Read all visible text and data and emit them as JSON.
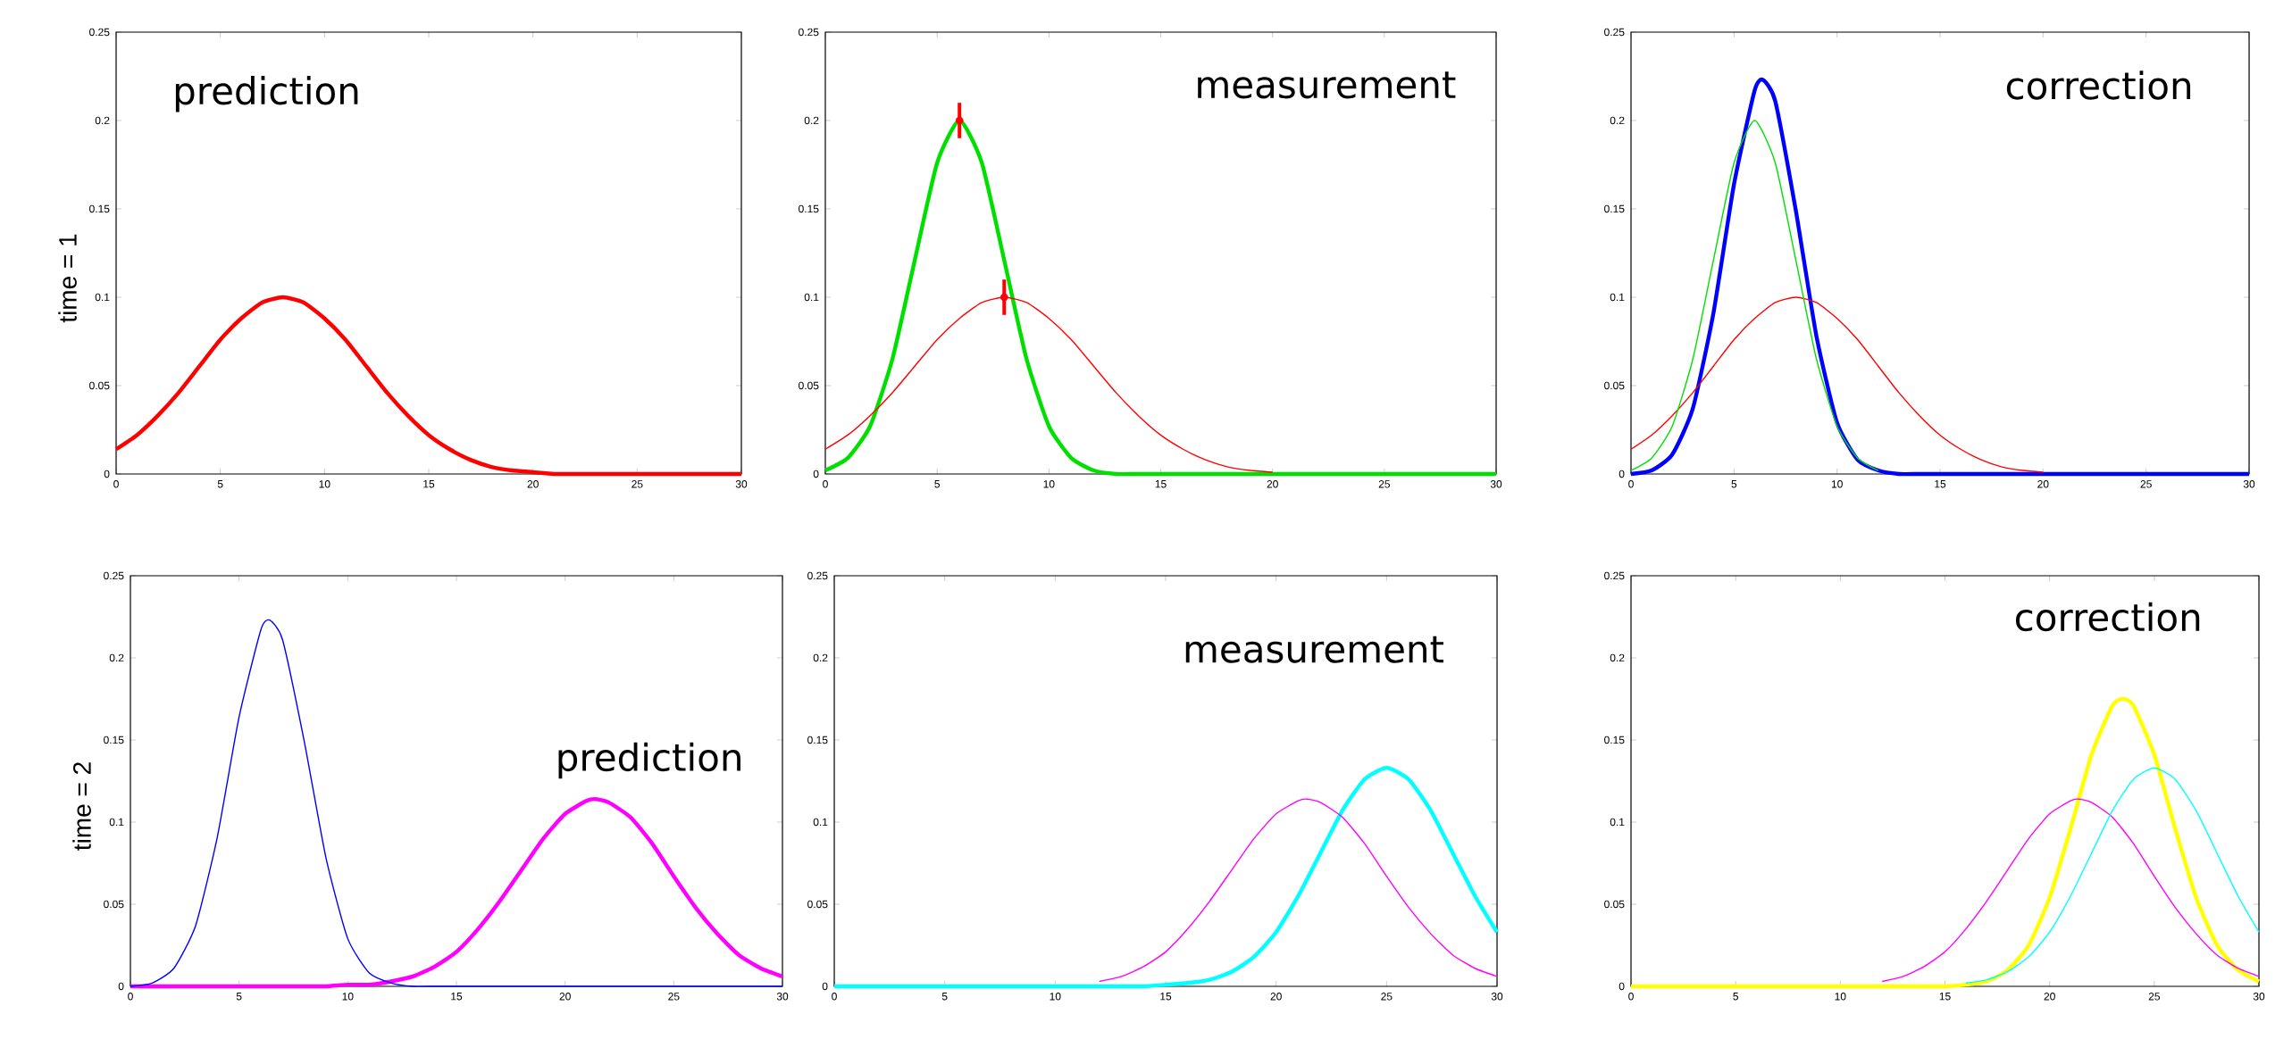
{
  "chart_data": [
    {
      "type": "line",
      "ylabel": "time = 1",
      "annotations": [
        "prediction"
      ],
      "xlim": [
        0,
        30
      ],
      "ylim": [
        0,
        0.25
      ],
      "xticks": [
        0,
        5,
        10,
        15,
        20,
        25,
        30
      ],
      "yticks": [
        0,
        0.05,
        0.1,
        0.15,
        0.2,
        0.25
      ],
      "series": [
        {
          "color": "#ff0000",
          "x": [
            0,
            1,
            2,
            3,
            4,
            5,
            6,
            7,
            8,
            9,
            10,
            11,
            12,
            13,
            14,
            15,
            16,
            17,
            18,
            19,
            20,
            21,
            22,
            23,
            24,
            25,
            26,
            27,
            28,
            29,
            30
          ],
          "values": [
            0.014,
            0.022,
            0.033,
            0.046,
            0.061,
            0.076,
            0.088,
            0.097,
            0.1,
            0.097,
            0.088,
            0.076,
            0.061,
            0.046,
            0.033,
            0.022,
            0.014,
            0.008,
            0.004,
            0.002,
            0.001,
            0,
            0,
            0,
            0,
            0,
            0,
            0,
            0,
            0,
            0
          ]
        }
      ]
    },
    {
      "type": "line",
      "annotations": [
        "measurement"
      ],
      "xlim": [
        0,
        30
      ],
      "ylim": [
        0,
        0.25
      ],
      "xticks": [
        0,
        5,
        10,
        15,
        20,
        25,
        30
      ],
      "yticks": [
        0,
        0.05,
        0.1,
        0.15,
        0.2,
        0.25
      ],
      "series": [
        {
          "color": "#ff0000",
          "x": [
            0,
            1,
            2,
            3,
            4,
            5,
            6,
            7,
            8,
            9,
            10,
            11,
            12,
            13,
            14,
            15,
            16,
            17,
            18,
            19,
            20
          ],
          "values": [
            0.014,
            0.022,
            0.033,
            0.046,
            0.061,
            0.076,
            0.088,
            0.097,
            0.1,
            0.097,
            0.088,
            0.076,
            0.061,
            0.046,
            0.033,
            0.022,
            0.014,
            0.008,
            0.004,
            0.002,
            0.001
          ]
        },
        {
          "color": "#00e000",
          "x": [
            0,
            1,
            2,
            3,
            4,
            5,
            6,
            7,
            8,
            9,
            10,
            11,
            12,
            13,
            14,
            15,
            16,
            17,
            18,
            19,
            20,
            21,
            22,
            23,
            24,
            25,
            26,
            27,
            28,
            29,
            30
          ],
          "values": [
            0.002,
            0.009,
            0.027,
            0.065,
            0.121,
            0.176,
            0.2,
            0.176,
            0.121,
            0.065,
            0.027,
            0.009,
            0.002,
            0,
            0,
            0,
            0,
            0,
            0,
            0,
            0,
            0,
            0,
            0,
            0,
            0,
            0,
            0,
            0,
            0,
            0
          ]
        },
        {
          "type": "scatter",
          "color": "#ff0000",
          "x": [
            6,
            8
          ],
          "values": [
            0.2,
            0.1
          ],
          "errors": [
            0.01,
            0.01
          ]
        }
      ]
    },
    {
      "type": "line",
      "annotations": [
        "correction"
      ],
      "xlim": [
        0,
        30
      ],
      "ylim": [
        0,
        0.25
      ],
      "xticks": [
        0,
        5,
        10,
        15,
        20,
        25,
        30
      ],
      "yticks": [
        0,
        0.05,
        0.1,
        0.15,
        0.2,
        0.25
      ],
      "series": [
        {
          "color": "#ff0000",
          "x": [
            0,
            1,
            2,
            3,
            4,
            5,
            6,
            7,
            8,
            9,
            10,
            11,
            12,
            13,
            14,
            15,
            16,
            17,
            18,
            19,
            20
          ],
          "values": [
            0.014,
            0.022,
            0.033,
            0.046,
            0.061,
            0.076,
            0.088,
            0.097,
            0.1,
            0.097,
            0.088,
            0.076,
            0.061,
            0.046,
            0.033,
            0.022,
            0.014,
            0.008,
            0.004,
            0.002,
            0.001
          ]
        },
        {
          "color": "#00e000",
          "x": [
            0,
            1,
            2,
            3,
            4,
            5,
            6,
            7,
            8,
            9,
            10,
            11,
            12
          ],
          "values": [
            0.002,
            0.009,
            0.027,
            0.065,
            0.121,
            0.176,
            0.2,
            0.176,
            0.121,
            0.065,
            0.027,
            0.009,
            0.002
          ]
        },
        {
          "color": "#0000ff",
          "x": [
            0,
            1,
            2,
            3,
            4,
            5,
            6,
            6.4,
            7,
            8,
            9,
            10,
            11,
            12,
            13,
            14,
            15,
            16,
            17,
            18,
            19,
            20,
            21,
            22,
            23,
            24,
            25,
            26,
            27,
            28,
            29,
            30
          ],
          "values": [
            0,
            0.002,
            0.011,
            0.037,
            0.091,
            0.164,
            0.217,
            0.223,
            0.211,
            0.149,
            0.078,
            0.029,
            0.008,
            0.002,
            0,
            0,
            0,
            0,
            0,
            0,
            0,
            0,
            0,
            0,
            0,
            0,
            0,
            0,
            0,
            0,
            0,
            0
          ]
        }
      ]
    },
    {
      "type": "line",
      "ylabel": "time = 2",
      "annotations": [
        "prediction"
      ],
      "xlim": [
        0,
        30
      ],
      "ylim": [
        0,
        0.25
      ],
      "xticks": [
        0,
        5,
        10,
        15,
        20,
        25,
        30
      ],
      "yticks": [
        0,
        0.05,
        0.1,
        0.15,
        0.2,
        0.25
      ],
      "series": [
        {
          "color": "#0000ff",
          "x": [
            0,
            1,
            2,
            3,
            4,
            5,
            6,
            6.4,
            7,
            8,
            9,
            10,
            11,
            12,
            13,
            14,
            15,
            16,
            17,
            18,
            19,
            20,
            21,
            22,
            23,
            24,
            25,
            26,
            27,
            28,
            29,
            30
          ],
          "values": [
            0,
            0.002,
            0.011,
            0.037,
            0.091,
            0.164,
            0.217,
            0.223,
            0.211,
            0.149,
            0.078,
            0.029,
            0.008,
            0.002,
            0,
            0,
            0,
            0,
            0,
            0,
            0,
            0,
            0,
            0,
            0,
            0,
            0,
            0,
            0,
            0,
            0,
            0
          ]
        },
        {
          "color": "#ff00ff",
          "x": [
            0,
            1,
            2,
            3,
            4,
            5,
            6,
            7,
            8,
            9,
            10,
            11,
            12,
            13,
            14,
            15,
            16,
            17,
            18,
            19,
            20,
            21,
            21.4,
            22,
            23,
            24,
            25,
            26,
            27,
            28,
            29,
            30
          ],
          "values": [
            0,
            0,
            0,
            0,
            0,
            0,
            0,
            0,
            0,
            0,
            0.001,
            0.001,
            0.003,
            0.006,
            0.012,
            0.021,
            0.035,
            0.052,
            0.071,
            0.09,
            0.105,
            0.113,
            0.114,
            0.112,
            0.103,
            0.087,
            0.067,
            0.048,
            0.032,
            0.019,
            0.011,
            0.006
          ]
        }
      ]
    },
    {
      "type": "line",
      "annotations": [
        "measurement"
      ],
      "xlim": [
        0,
        30
      ],
      "ylim": [
        0,
        0.25
      ],
      "xticks": [
        0,
        5,
        10,
        15,
        20,
        25,
        30
      ],
      "yticks": [
        0,
        0.05,
        0.1,
        0.15,
        0.2,
        0.25
      ],
      "series": [
        {
          "color": "#ff00ff",
          "x": [
            12,
            13,
            14,
            15,
            16,
            17,
            18,
            19,
            20,
            21,
            21.4,
            22,
            23,
            24,
            25,
            26,
            27,
            28,
            29,
            30
          ],
          "values": [
            0.003,
            0.006,
            0.012,
            0.021,
            0.035,
            0.052,
            0.071,
            0.09,
            0.105,
            0.113,
            0.114,
            0.112,
            0.103,
            0.087,
            0.067,
            0.048,
            0.032,
            0.019,
            0.011,
            0.006
          ]
        },
        {
          "color": "#00ffff",
          "x": [
            0,
            1,
            2,
            3,
            4,
            5,
            6,
            7,
            8,
            9,
            10,
            11,
            12,
            13,
            14,
            15,
            16,
            17,
            18,
            19,
            20,
            21,
            22,
            23,
            24,
            25,
            26,
            27,
            28,
            29,
            30
          ],
          "values": [
            0,
            0,
            0,
            0,
            0,
            0,
            0,
            0,
            0,
            0,
            0,
            0,
            0,
            0,
            0,
            0.001,
            0.002,
            0.004,
            0.009,
            0.018,
            0.033,
            0.055,
            0.081,
            0.107,
            0.126,
            0.133,
            0.126,
            0.107,
            0.081,
            0.055,
            0.033
          ]
        }
      ]
    },
    {
      "type": "line",
      "annotations": [
        "correction"
      ],
      "xlim": [
        0,
        30
      ],
      "ylim": [
        0,
        0.25
      ],
      "xticks": [
        0,
        5,
        10,
        15,
        20,
        25,
        30
      ],
      "yticks": [
        0,
        0.05,
        0.1,
        0.15,
        0.2,
        0.25
      ],
      "series": [
        {
          "color": "#ff00ff",
          "x": [
            12,
            13,
            14,
            15,
            16,
            17,
            18,
            19,
            20,
            21,
            21.4,
            22,
            23,
            24,
            25,
            26,
            27,
            28,
            29,
            30
          ],
          "values": [
            0.003,
            0.006,
            0.012,
            0.021,
            0.035,
            0.052,
            0.071,
            0.09,
            0.105,
            0.113,
            0.114,
            0.112,
            0.103,
            0.087,
            0.067,
            0.048,
            0.032,
            0.019,
            0.011,
            0.006
          ]
        },
        {
          "color": "#00ffff",
          "x": [
            16,
            17,
            18,
            19,
            20,
            21,
            22,
            23,
            24,
            25,
            26,
            27,
            28,
            29,
            30
          ],
          "values": [
            0.002,
            0.004,
            0.009,
            0.018,
            0.033,
            0.055,
            0.081,
            0.107,
            0.126,
            0.133,
            0.126,
            0.107,
            0.081,
            0.055,
            0.033
          ]
        },
        {
          "color": "#ffff00",
          "x": [
            0,
            1,
            2,
            3,
            4,
            5,
            6,
            7,
            8,
            9,
            10,
            11,
            12,
            13,
            14,
            15,
            16,
            17,
            18,
            19,
            20,
            21,
            22,
            23,
            23.5,
            24,
            25,
            26,
            27,
            28,
            29,
            30
          ],
          "values": [
            0,
            0,
            0,
            0,
            0,
            0,
            0,
            0,
            0,
            0,
            0,
            0,
            0,
            0,
            0,
            0,
            0.001,
            0.003,
            0.01,
            0.025,
            0.054,
            0.096,
            0.141,
            0.171,
            0.175,
            0.171,
            0.141,
            0.096,
            0.054,
            0.025,
            0.01,
            0.003
          ]
        }
      ]
    }
  ]
}
